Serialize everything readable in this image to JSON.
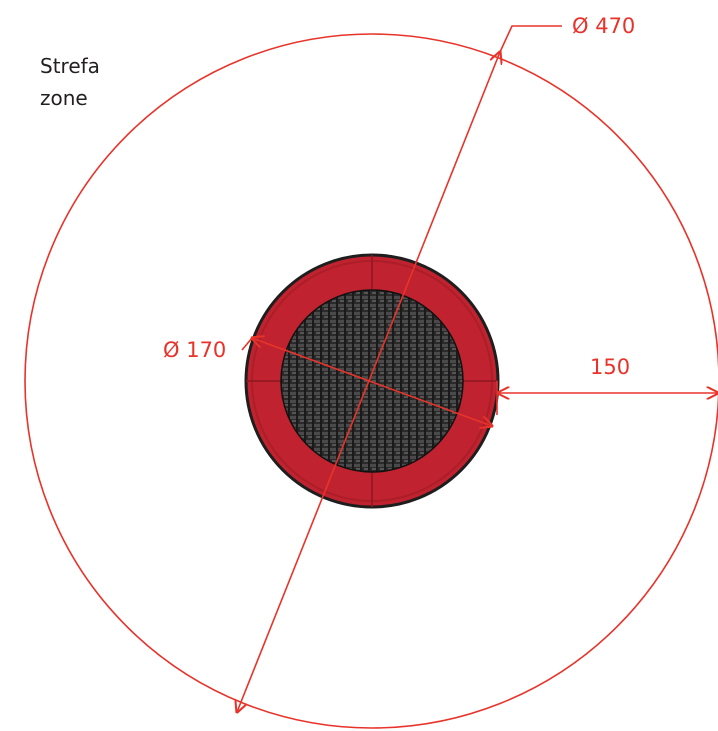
{
  "zone_label": {
    "line1": "Strefa",
    "line2": "zone"
  },
  "dimensions": {
    "outer_diameter": "Ø 470",
    "inner_diameter": "Ø 170",
    "clearance": "150"
  },
  "colors": {
    "dimension_red": "#e8332a",
    "pad_red": "#c0232f",
    "mat_dark": "#2b2b2b",
    "outline_dark": "#1e1e1e"
  }
}
